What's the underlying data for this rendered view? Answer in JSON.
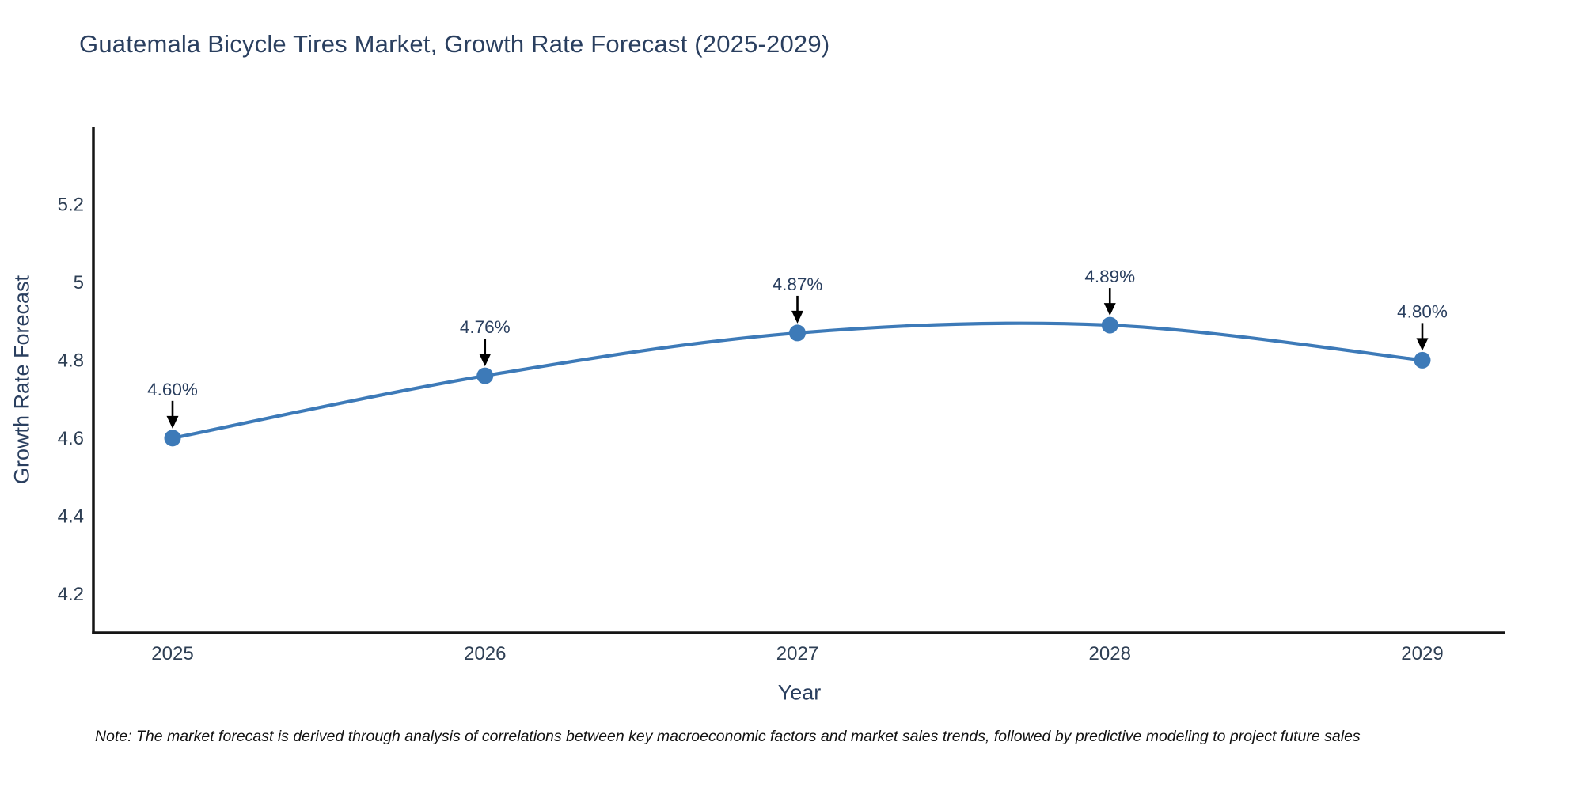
{
  "title": "Guatemala Bicycle Tires Market, Growth Rate Forecast (2025-2029)",
  "note": "Note: The market forecast is derived through analysis of correlations between key macroeconomic factors and market sales trends, followed by predictive modeling to project future sales",
  "chart_data": {
    "type": "line",
    "title": "Guatemala Bicycle Tires Market, Growth Rate Forecast (2025-2029)",
    "x": [
      "2025",
      "2026",
      "2027",
      "2028",
      "2029"
    ],
    "values": [
      4.6,
      4.76,
      4.87,
      4.89,
      4.8
    ],
    "point_labels": [
      "4.60%",
      "4.76%",
      "4.87%",
      "4.89%",
      "4.80%"
    ],
    "xlabel": "Year",
    "ylabel": "Growth Rate Forecast",
    "yticks": [
      4.2,
      4.4,
      4.6,
      4.8,
      5,
      5.2
    ],
    "ytick_labels": [
      "4.2",
      "4.4",
      "4.6",
      "4.8",
      "5",
      "5.2"
    ],
    "ylim": [
      4.1,
      5.4
    ],
    "grid": false,
    "legend": "none",
    "line_shape": "spline",
    "colors": {
      "line": "#3d7ab8",
      "marker": "#3d7ab8",
      "axis": "#151515",
      "tick_text": "#2e3f54",
      "title_text": "#2a3f5f",
      "annotation_text": "#2a3f5f",
      "annotation_arrow": "#000000",
      "background": "#ffffff"
    }
  }
}
